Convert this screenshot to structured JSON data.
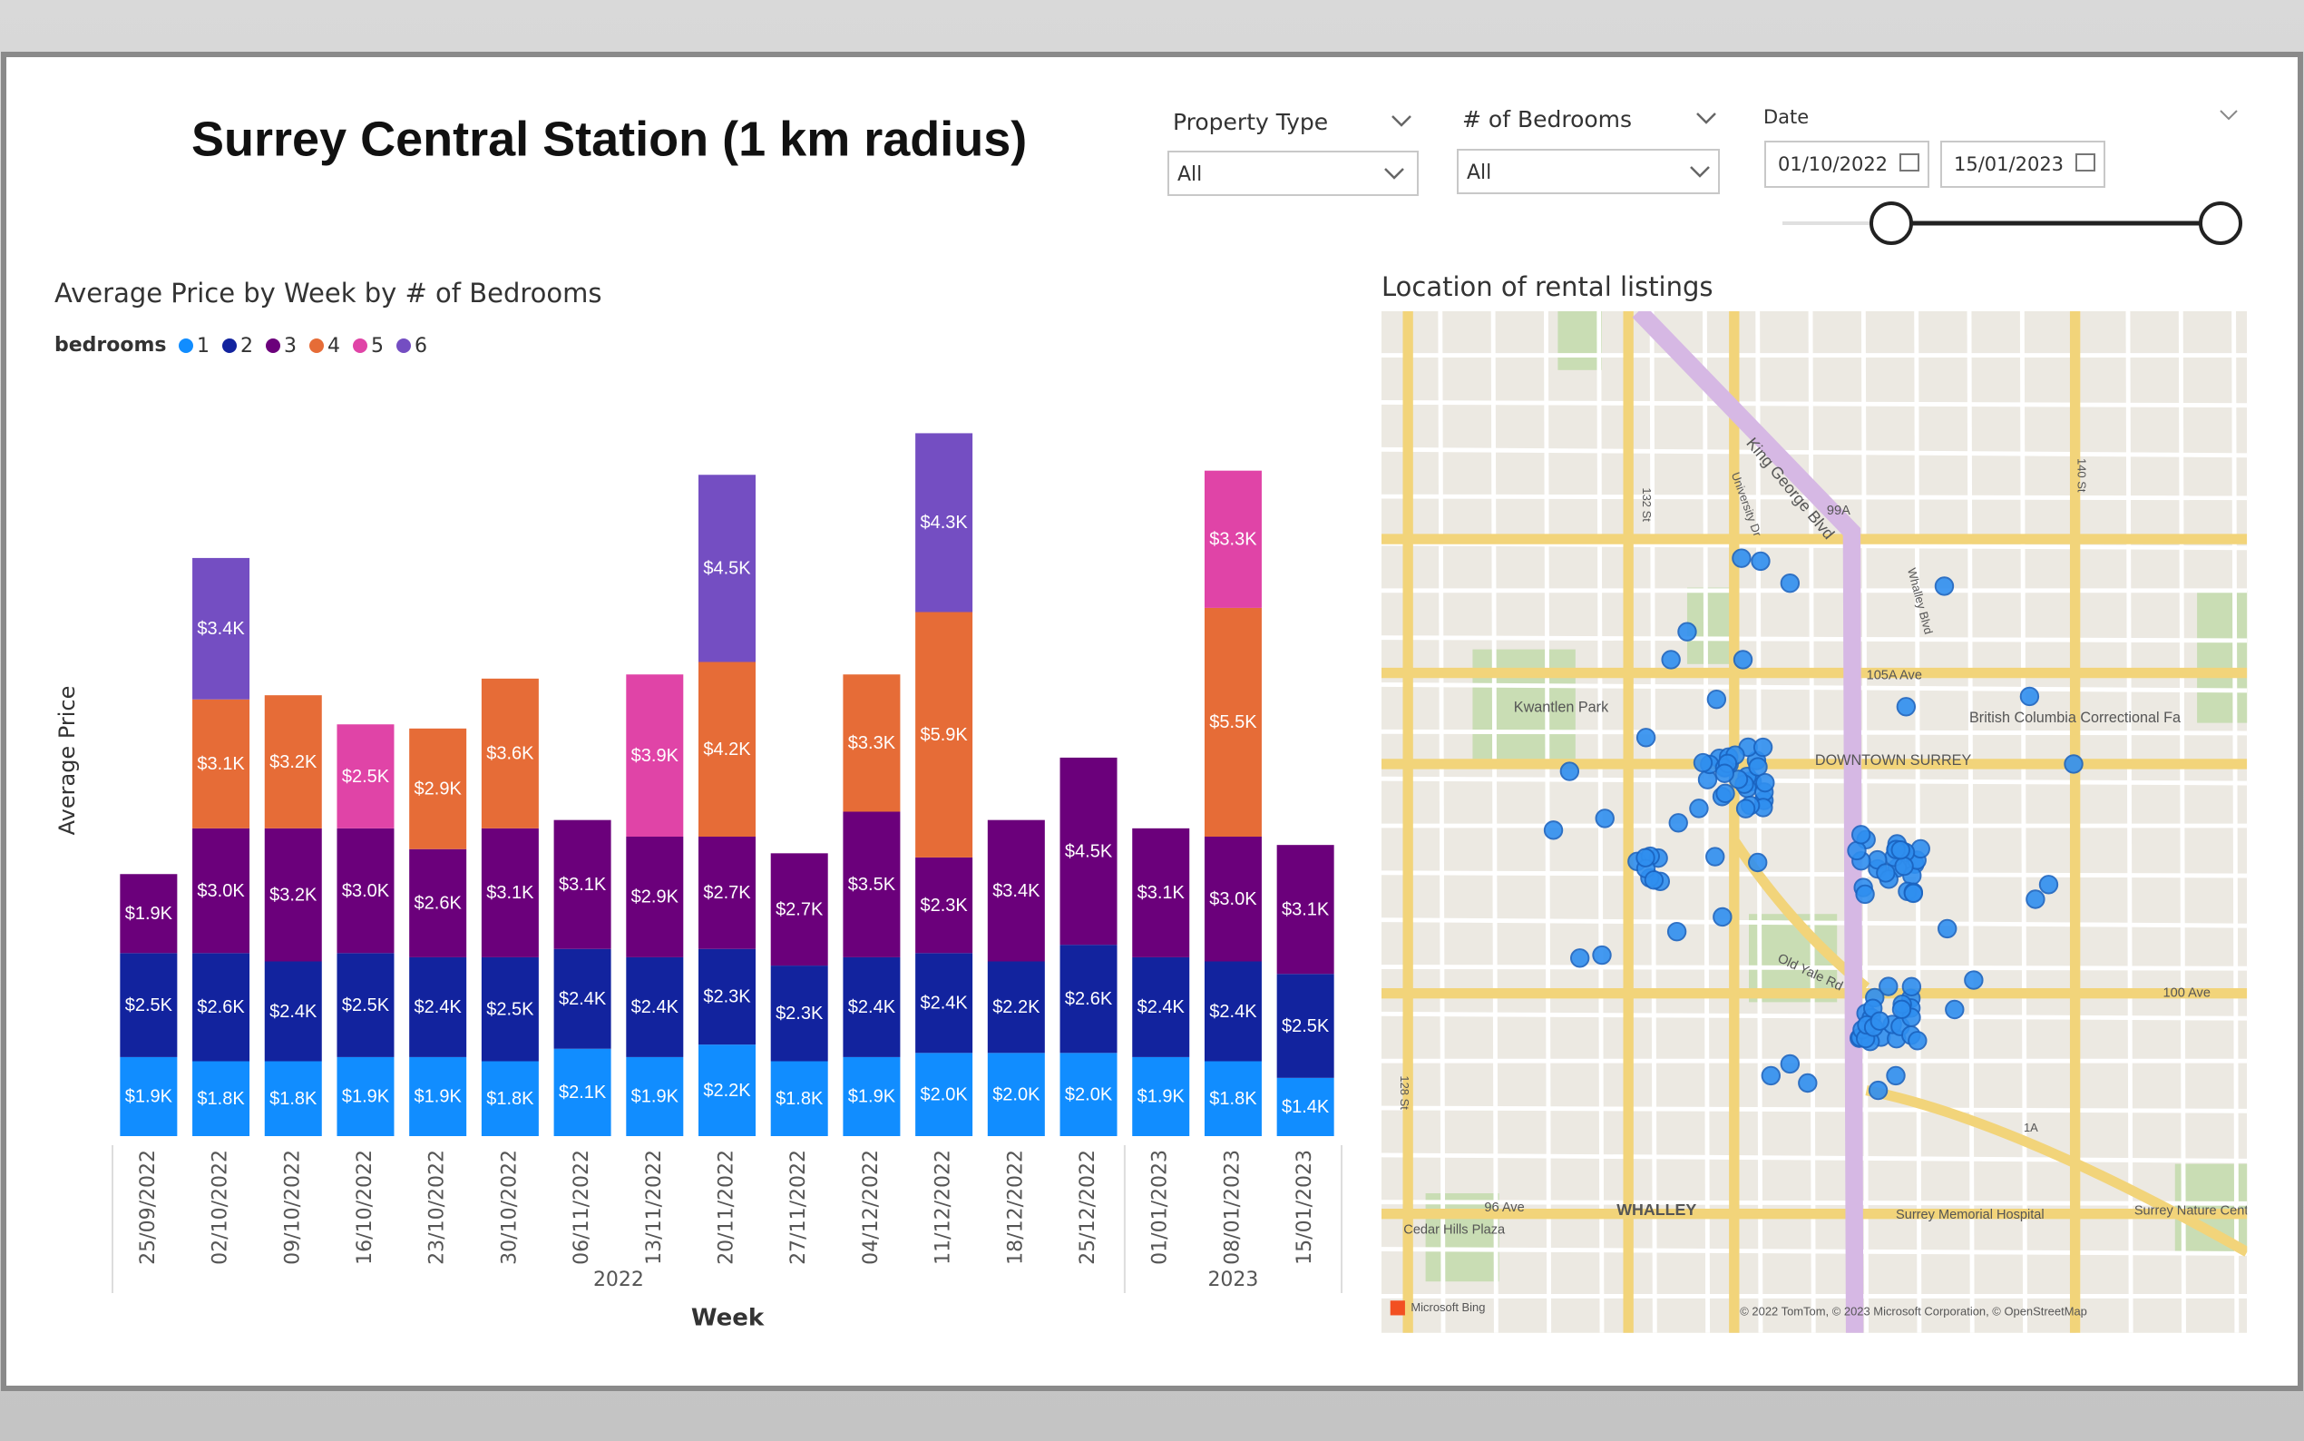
{
  "header": {
    "title": "Surrey Central Station (1 km radius)"
  },
  "filters": {
    "property_type": {
      "label": "Property Type",
      "value": "All"
    },
    "bedrooms": {
      "label": "# of Bedrooms",
      "value": "All"
    },
    "date": {
      "label": "Date",
      "start": "01/10/2022",
      "end": "15/01/2023"
    }
  },
  "chart_data": {
    "type": "bar",
    "stacked": true,
    "title": "Average Price by Week by # of Bedrooms",
    "legend_title": "bedrooms",
    "x_label": "Week",
    "y_label": "Average Price",
    "categories": [
      "25/09/2022",
      "02/10/2022",
      "09/10/2022",
      "16/10/2022",
      "23/10/2022",
      "30/10/2022",
      "06/11/2022",
      "13/11/2022",
      "20/11/2022",
      "27/11/2022",
      "04/12/2022",
      "11/12/2022",
      "18/12/2022",
      "25/12/2022",
      "01/01/2023",
      "08/01/2023",
      "15/01/2023"
    ],
    "year_labels": [
      "2022",
      "2023"
    ],
    "ylim": [
      0,
      18000
    ],
    "series": [
      {
        "name": "1",
        "color": "#118dff",
        "values": [
          1900,
          1800,
          1800,
          1900,
          1900,
          1800,
          2100,
          1900,
          2200,
          1800,
          1900,
          2000,
          2000,
          2000,
          1900,
          1800,
          1400
        ],
        "value_labels": [
          "$1.9K",
          "$1.8K",
          "$1.8K",
          "$1.9K",
          "$1.9K",
          "$1.8K",
          "$2.1K",
          "$1.9K",
          "$2.2K",
          "$1.8K",
          "$1.9K",
          "$2.0K",
          "$2.0K",
          "$2.0K",
          "$1.9K",
          "$1.8K",
          "$1.4K"
        ]
      },
      {
        "name": "2",
        "color": "#12239e",
        "values": [
          2500,
          2600,
          2400,
          2500,
          2400,
          2500,
          2400,
          2400,
          2300,
          2300,
          2400,
          2400,
          2200,
          2600,
          2400,
          2400,
          2500
        ],
        "value_labels": [
          "$2.5K",
          "$2.6K",
          "$2.4K",
          "$2.5K",
          "$2.4K",
          "$2.5K",
          "$2.4K",
          "$2.4K",
          "$2.3K",
          "$2.3K",
          "$2.4K",
          "$2.4K",
          "$2.2K",
          "$2.6K",
          "$2.4K",
          "$2.4K",
          "$2.5K"
        ]
      },
      {
        "name": "3",
        "color": "#6b007b",
        "values": [
          1900,
          3000,
          3200,
          3000,
          2600,
          3100,
          3100,
          2900,
          2700,
          2700,
          3500,
          2300,
          3400,
          4500,
          3100,
          3000,
          3100
        ],
        "value_labels": [
          "$1.9K",
          "$3.0K",
          "$3.2K",
          "$3.0K",
          "$2.6K",
          "$3.1K",
          "$3.1K",
          "$2.9K",
          "$2.7K",
          "$2.7K",
          "$3.5K",
          "$2.3K",
          "$3.4K",
          "$4.5K",
          "$3.1K",
          "$3.0K",
          "$3.1K"
        ]
      },
      {
        "name": "4",
        "color": "#e66c37",
        "values": [
          null,
          3100,
          3200,
          null,
          2900,
          3600,
          null,
          null,
          4200,
          null,
          3300,
          5900,
          null,
          null,
          null,
          5500,
          null
        ],
        "value_labels": [
          null,
          "$3.1K",
          "$3.2K",
          null,
          "$2.9K",
          "$3.6K",
          null,
          null,
          "$4.2K",
          null,
          "$3.3K",
          "$5.9K",
          null,
          null,
          null,
          "$5.5K",
          null
        ]
      },
      {
        "name": "5",
        "color": "#e044a7",
        "values": [
          null,
          null,
          null,
          2500,
          null,
          null,
          null,
          3900,
          null,
          null,
          null,
          null,
          null,
          null,
          null,
          3300,
          null
        ],
        "value_labels": [
          null,
          null,
          null,
          "$2.5K",
          null,
          null,
          null,
          "$3.9K",
          null,
          null,
          null,
          null,
          null,
          null,
          null,
          "$3.3K",
          null
        ]
      },
      {
        "name": "6",
        "color": "#744ec2",
        "values": [
          null,
          3400,
          null,
          null,
          null,
          null,
          null,
          null,
          4500,
          null,
          null,
          4300,
          null,
          null,
          null,
          null,
          null
        ],
        "value_labels": [
          null,
          "$3.4K",
          null,
          null,
          null,
          null,
          null,
          null,
          "$4.5K",
          null,
          null,
          "$4.3K",
          null,
          null,
          null,
          null,
          null
        ]
      }
    ]
  },
  "map": {
    "title": "Location of rental listings",
    "labels": [
      "King George Blvd",
      "99A",
      "Kwantlen Park",
      "DOWNTOWN SURREY",
      "105A Ave",
      "British Columbia Correctional Fa",
      "100 Ave",
      "Old Yale Rd",
      "WHALLEY",
      "96 Ave",
      "Cedar Hills Plaza",
      "Surrey Memorial Hospital",
      "Surrey Nature Centre",
      "1A",
      "132 St",
      "128 St",
      "140 St",
      "Whalley Blvd",
      "University Dr"
    ],
    "logo": "Microsoft Bing",
    "attribution": "© 2022 TomTom, © 2023 Microsoft Corporation, © OpenStreetMap"
  }
}
